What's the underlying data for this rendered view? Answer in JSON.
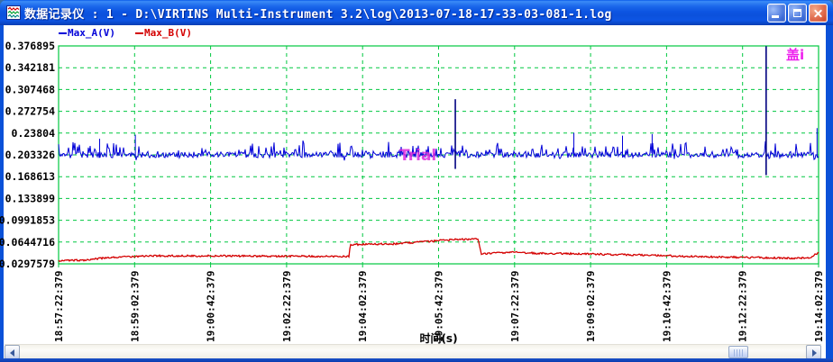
{
  "window": {
    "title": "数据记录仪 : 1 - D:\\VIRTINS Multi-Instrument 3.2\\log\\2013-07-18-17-33-03-081-1.log"
  },
  "legend": {
    "items": [
      {
        "label": "Max_A(V)",
        "color": "#0000cc"
      },
      {
        "label": "Max_B(V)",
        "color": "#d40000"
      }
    ]
  },
  "watermark": {
    "trial": "Trial",
    "corner": "盖i",
    "color": "#ee22ee"
  },
  "chart_data": {
    "type": "line",
    "xlabel": "时间(s)",
    "x_tick_labels": [
      "18:57:22:379",
      "18:59:02:379",
      "19:00:42:379",
      "19:02:22:379",
      "19:04:02:379",
      "19:05:42:379",
      "19:07:22:379",
      "19:09:02:379",
      "19:10:42:379",
      "19:12:22:379",
      "19:14:02:379"
    ],
    "y_tick_labels": [
      "0.376895",
      "0.342181",
      "0.307468",
      "0.272754",
      "0.23804",
      "0.203326",
      "0.168613",
      "0.133899",
      "0.0991853",
      "0.0644716",
      "0.0297579"
    ],
    "ylim": [
      0.0297579,
      0.376895
    ],
    "grid": {
      "color": "#00c840",
      "style": "dashed",
      "border": "solid"
    },
    "series": [
      {
        "name": "Max_A(V)",
        "color": "#0000d8",
        "spike_color": "#000080",
        "noise": 0.0045,
        "spiky": true,
        "keypoints": [
          [
            0,
            0.203326
          ],
          [
            1,
            0.203326
          ]
        ],
        "spikes": [
          {
            "x": 0.054,
            "high": 0.229
          },
          {
            "x": 0.101,
            "high": 0.2355
          },
          {
            "x": 0.522,
            "high": 0.292,
            "low": 0.181
          },
          {
            "x": 0.678,
            "high": 0.2385
          },
          {
            "x": 0.742,
            "high": 0.234
          },
          {
            "x": 0.781,
            "high": 0.2365
          },
          {
            "x": 0.931,
            "high": 0.3765,
            "low": 0.171
          },
          {
            "x": 0.998,
            "high": 0.246
          }
        ]
      },
      {
        "name": "Max_B(V)",
        "color": "#d40000",
        "noise": 0.0014,
        "spiky": false,
        "keypoints": [
          [
            0,
            0.035
          ],
          [
            0.03,
            0.0355
          ],
          [
            0.07,
            0.04
          ],
          [
            0.12,
            0.0425
          ],
          [
            0.18,
            0.0425
          ],
          [
            0.3,
            0.042
          ],
          [
            0.382,
            0.0415
          ],
          [
            0.384,
            0.0605
          ],
          [
            0.44,
            0.0615
          ],
          [
            0.47,
            0.064
          ],
          [
            0.5,
            0.0665
          ],
          [
            0.52,
            0.0685
          ],
          [
            0.552,
            0.069
          ],
          [
            0.556,
            0.0455
          ],
          [
            0.58,
            0.0475
          ],
          [
            0.6,
            0.048
          ],
          [
            0.63,
            0.0465
          ],
          [
            0.68,
            0.046
          ],
          [
            0.73,
            0.0445
          ],
          [
            0.78,
            0.0435
          ],
          [
            0.83,
            0.0415
          ],
          [
            0.88,
            0.0405
          ],
          [
            0.93,
            0.0395
          ],
          [
            0.975,
            0.0385
          ],
          [
            0.99,
            0.04
          ],
          [
            1,
            0.048
          ]
        ],
        "spikes": []
      }
    ]
  }
}
